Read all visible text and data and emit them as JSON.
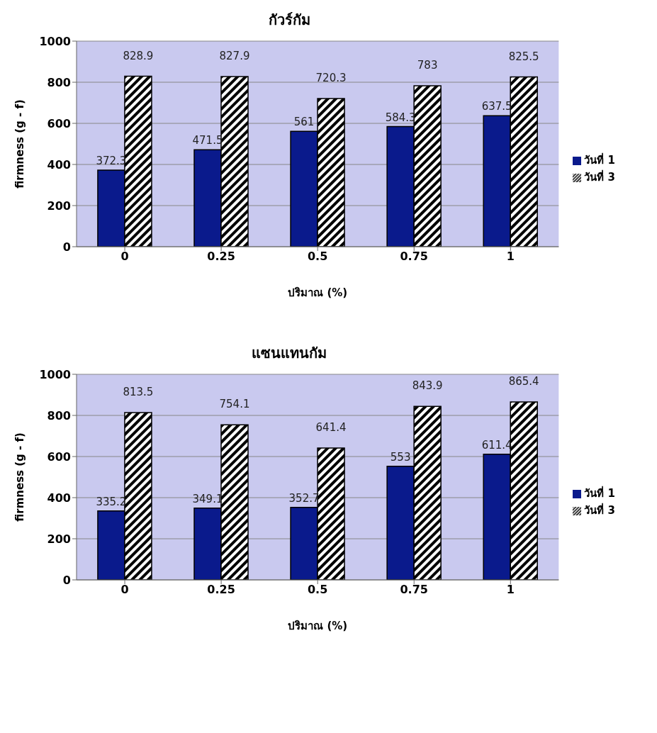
{
  "chart_data": [
    {
      "type": "bar",
      "title": "กัวร์กัม",
      "xlabel": "ปริมาณ (%)",
      "ylabel": "firmness (g - f)",
      "categories": [
        "0",
        "0.25",
        "0.5",
        "0.75",
        "1"
      ],
      "series": [
        {
          "name": "วันที่ 1",
          "color": "#0a1a8c",
          "values": [
            372.3,
            471.5,
            561,
            584.3,
            637.5
          ]
        },
        {
          "name": "วันที่ 3",
          "color": "#000000",
          "values": [
            828.9,
            827.9,
            720.3,
            783,
            825.5
          ]
        }
      ],
      "ylim": [
        0,
        1000
      ],
      "yticks": [
        0,
        200,
        400,
        600,
        800,
        1000
      ],
      "grid": "y",
      "legend": "right",
      "data_labels": true
    },
    {
      "type": "bar",
      "title": "แซนแทนกัม",
      "xlabel": "ปริมาณ (%)",
      "ylabel": "firmness (g - f)",
      "categories": [
        "0",
        "0.25",
        "0.5",
        "0.75",
        "1"
      ],
      "series": [
        {
          "name": "วันที่ 1",
          "color": "#0a1a8c",
          "values": [
            335.2,
            349.1,
            352.7,
            553,
            611.4
          ]
        },
        {
          "name": "วันที่ 3",
          "color": "#000000",
          "values": [
            813.5,
            754.1,
            641.4,
            843.9,
            865.4
          ]
        }
      ],
      "ylim": [
        0,
        1000
      ],
      "yticks": [
        0,
        200,
        400,
        600,
        800,
        1000
      ],
      "grid": "y",
      "legend": "right",
      "data_labels": true
    }
  ]
}
